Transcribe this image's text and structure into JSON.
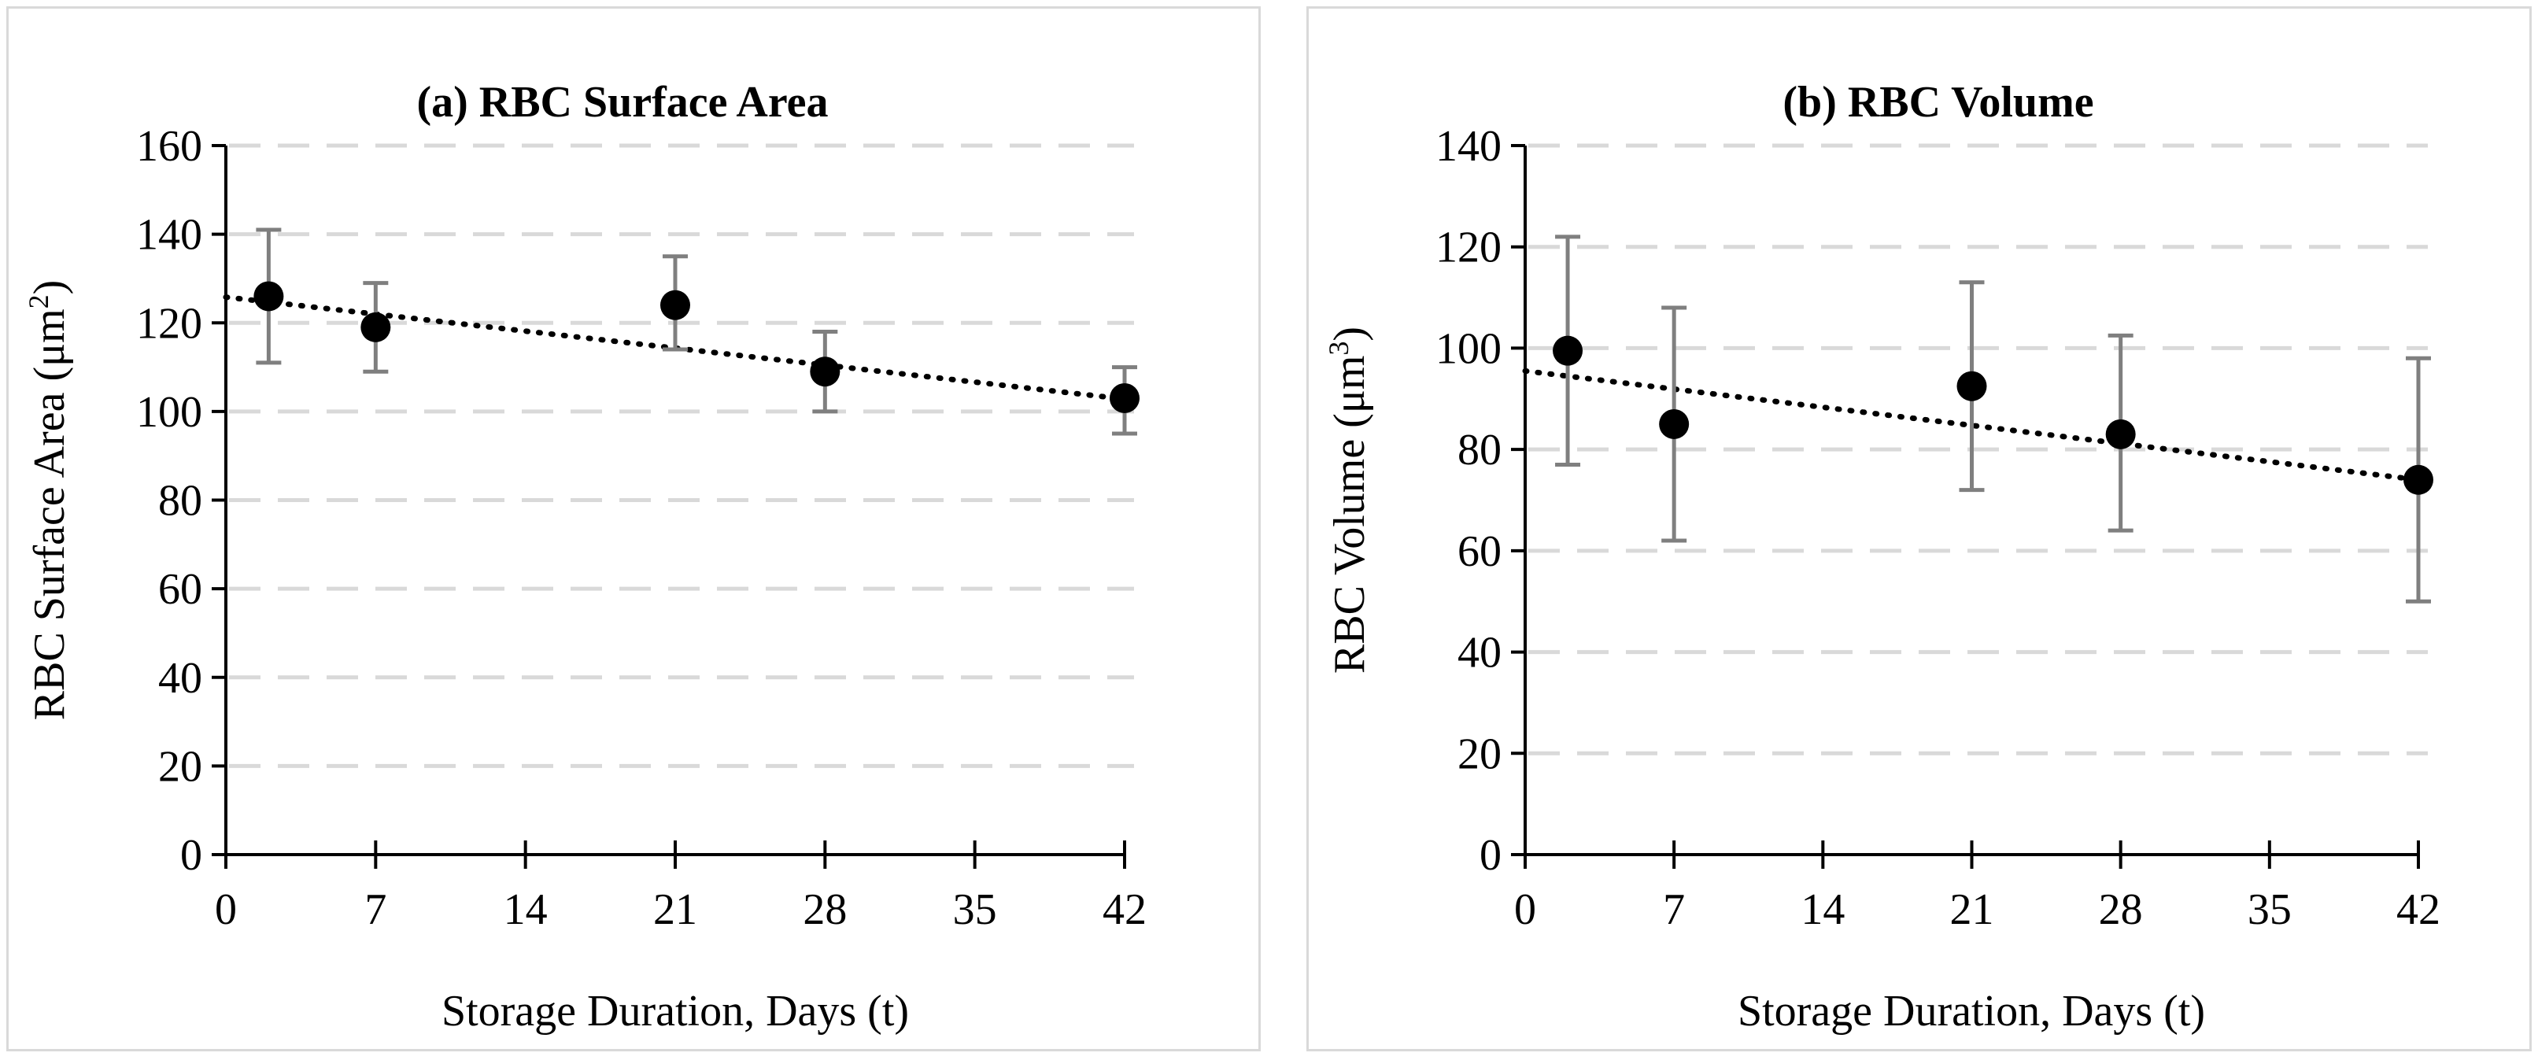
{
  "chart_data": [
    {
      "type": "scatter",
      "title": "(a) RBC Surface Area",
      "xlabel": "Storage Duration, Days (t)",
      "ylabel_base": "RBC Surface Area (μm",
      "ylabel_sup": "2",
      "ylabel_end": ")",
      "xlim": [
        0,
        42
      ],
      "ylim": [
        0,
        160
      ],
      "xticks": [
        0,
        7,
        14,
        21,
        28,
        35,
        42
      ],
      "yticks": [
        0,
        20,
        40,
        60,
        80,
        100,
        120,
        140,
        160
      ],
      "grid": true,
      "series": [
        {
          "name": "RBC Surface Area",
          "x": [
            2,
            7,
            21,
            28,
            42
          ],
          "y": [
            126,
            119,
            124,
            109,
            103
          ],
          "err_low": [
            111,
            109,
            114,
            100,
            95
          ],
          "err_high": [
            141,
            129,
            135,
            118,
            110
          ]
        }
      ],
      "trendline": {
        "type": "linear",
        "from": [
          0,
          125.8
        ],
        "to": [
          42,
          102.8
        ]
      },
      "colors": {
        "point": "#000000",
        "error_bar": "#7f7f7f",
        "grid": "#d9d9d9"
      }
    },
    {
      "type": "scatter",
      "title": "(b) RBC Volume",
      "xlabel": "Storage Duration, Days (t)",
      "ylabel_base": "RBC Volume (μm",
      "ylabel_sup": "3",
      "ylabel_end": ")",
      "xlim": [
        0,
        42
      ],
      "ylim": [
        0,
        140
      ],
      "xticks": [
        0,
        7,
        14,
        21,
        28,
        35,
        42
      ],
      "yticks": [
        0,
        20,
        40,
        60,
        80,
        100,
        120,
        140
      ],
      "grid": true,
      "series": [
        {
          "name": "RBC Volume",
          "x": [
            2,
            7,
            21,
            28,
            42
          ],
          "y": [
            99.5,
            85,
            92.5,
            83,
            74
          ],
          "err_low": [
            77,
            62,
            72,
            64,
            50
          ],
          "err_high": [
            122,
            108,
            113,
            102.5,
            98
          ]
        }
      ],
      "trendline": {
        "type": "linear",
        "from": [
          0,
          95.5
        ],
        "to": [
          42,
          74
        ]
      },
      "colors": {
        "point": "#000000",
        "error_bar": "#7f7f7f",
        "grid": "#d9d9d9"
      }
    }
  ]
}
